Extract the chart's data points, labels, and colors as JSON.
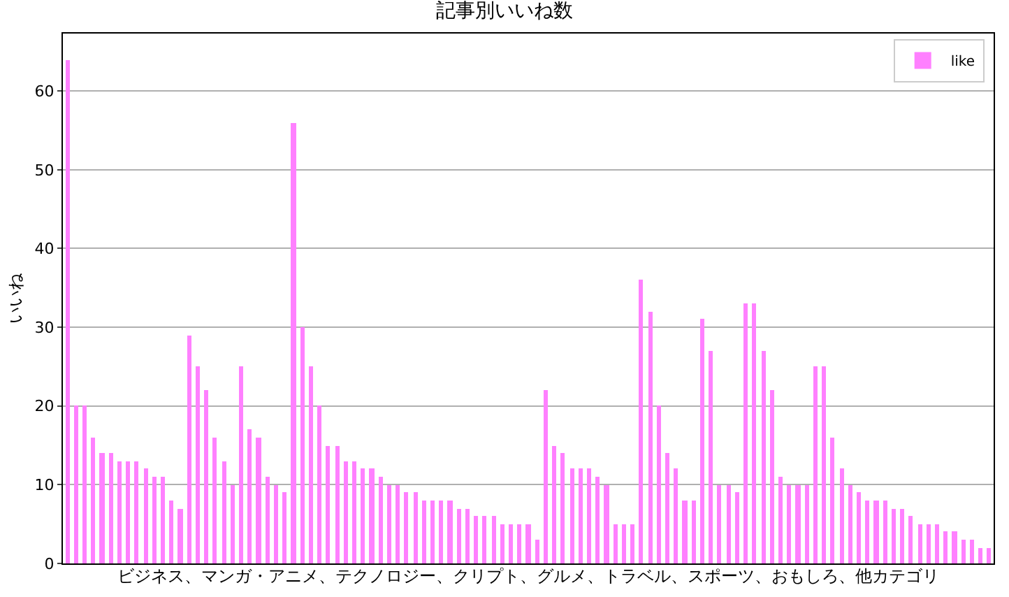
{
  "chart_data": {
    "type": "bar",
    "title": "記事別いいね数",
    "xlabel": "ビジネス、マンガ・アニメ、テクノロジー、クリプト、グルメ、トラベル、スポーツ、おもしろ、他カテゴリ",
    "ylabel": "いいね",
    "categories": [
      null,
      null,
      null,
      null,
      null,
      null,
      null,
      null,
      null,
      null,
      null,
      null,
      null,
      null,
      null,
      null,
      null,
      null,
      null,
      null,
      null,
      null,
      null,
      null,
      null,
      null,
      null,
      null,
      null,
      null,
      null,
      null,
      null,
      null,
      null,
      null,
      null,
      null,
      null,
      null,
      null,
      null,
      null,
      null,
      null,
      null,
      null,
      null,
      null,
      null,
      null,
      null,
      null,
      null,
      null,
      null,
      null,
      null,
      null,
      null,
      null,
      null,
      null,
      null,
      null,
      null,
      null,
      null,
      null,
      null,
      null,
      null,
      null,
      null,
      null,
      null,
      null,
      null,
      null,
      null,
      null,
      null,
      null,
      null,
      null,
      null,
      null,
      null,
      null,
      null,
      null,
      null,
      null,
      null,
      null,
      null,
      null,
      null,
      null,
      null,
      null,
      null,
      null,
      null,
      null,
      null,
      null
    ],
    "series": [
      {
        "name": "like",
        "color": "#ff80ff",
        "values": [
          64,
          20,
          20,
          16,
          14,
          14,
          13,
          13,
          13,
          12,
          11,
          11,
          8,
          7,
          29,
          25,
          22,
          16,
          13,
          10,
          25,
          17,
          16,
          11,
          10,
          9,
          56,
          30,
          25,
          20,
          15,
          15,
          13,
          13,
          12,
          12,
          11,
          10,
          10,
          9,
          9,
          8,
          8,
          8,
          8,
          7,
          7,
          6,
          6,
          6,
          5,
          5,
          5,
          5,
          3,
          22,
          15,
          14,
          12,
          12,
          12,
          11,
          10,
          5,
          5,
          5,
          36,
          32,
          20,
          14,
          12,
          8,
          8,
          31,
          27,
          10,
          10,
          9,
          33,
          33,
          27,
          22,
          11,
          10,
          10,
          10,
          25,
          25,
          16,
          12,
          10,
          9,
          8,
          8,
          8,
          7,
          7,
          6,
          5,
          5,
          5,
          4,
          4,
          3,
          3,
          2,
          2
        ]
      }
    ],
    "ylim": [
      0,
      67.3
    ],
    "yticks": [
      0,
      10,
      20,
      30,
      40,
      50,
      60
    ],
    "grid": "y",
    "legend": "top right"
  }
}
